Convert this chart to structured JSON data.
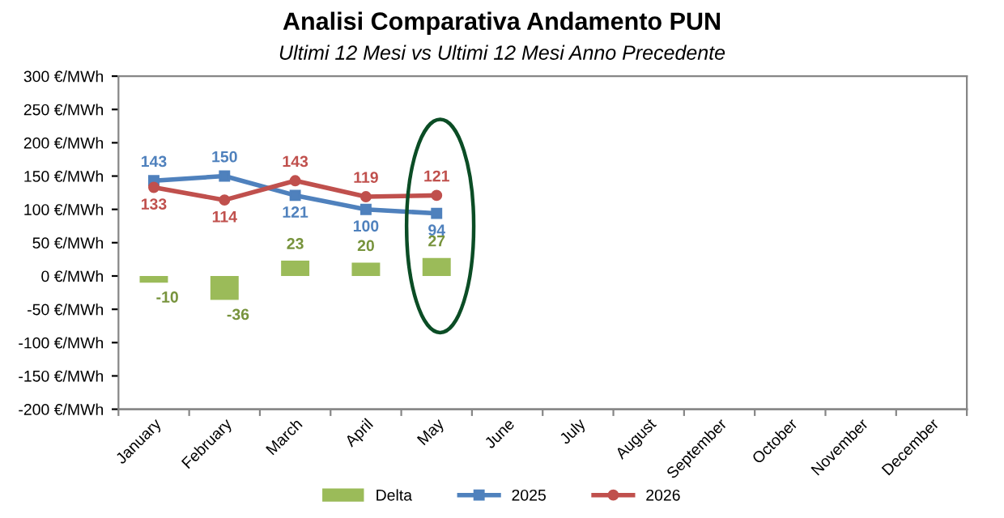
{
  "chart_data": {
    "type": "bar",
    "title": "Analisi Comparativa Andamento PUN",
    "subtitle": "Ultimi 12 Mesi vs Ultimi 12 Mesi Anno Precedente",
    "categories": [
      "January",
      "February",
      "March",
      "April",
      "May",
      "June",
      "July",
      "August",
      "September",
      "October",
      "November",
      "December"
    ],
    "series": [
      {
        "name": "Delta",
        "color": "#9bbb59",
        "values": [
          -10,
          -36,
          23,
          20,
          27,
          null,
          null,
          null,
          null,
          null,
          null,
          null
        ]
      },
      {
        "name": "2025",
        "type": "line",
        "color": "#4f81bd",
        "marker": "square",
        "values": [
          143,
          150,
          121,
          100,
          94,
          null,
          null,
          null,
          null,
          null,
          null,
          null
        ]
      },
      {
        "name": "2026",
        "type": "line",
        "color": "#c0504d",
        "marker": "circle",
        "values": [
          133,
          114,
          143,
          119,
          121,
          null,
          null,
          null,
          null,
          null,
          null,
          null
        ]
      }
    ],
    "ylim": [
      -200,
      300
    ],
    "yticks": [
      {
        "value": -200,
        "label": "-200 €/MWh"
      },
      {
        "value": -150,
        "label": "-150 €/MWh"
      },
      {
        "value": -100,
        "label": "-100 €/MWh"
      },
      {
        "value": -50,
        "label": "-50 €/MWh"
      },
      {
        "value": 0,
        "label": "0 €/MWh"
      },
      {
        "value": 50,
        "label": "50 €/MWh"
      },
      {
        "value": 100,
        "label": "100 €/MWh"
      },
      {
        "value": 150,
        "label": "150 €/MWh"
      },
      {
        "value": 200,
        "label": "200 €/MWh"
      },
      {
        "value": 250,
        "label": "250 €/MWh"
      },
      {
        "value": 300,
        "label": "300 €/MWh"
      }
    ],
    "data_labels": true,
    "grid": false,
    "legend": "bottom",
    "line_style": "solid"
  }
}
